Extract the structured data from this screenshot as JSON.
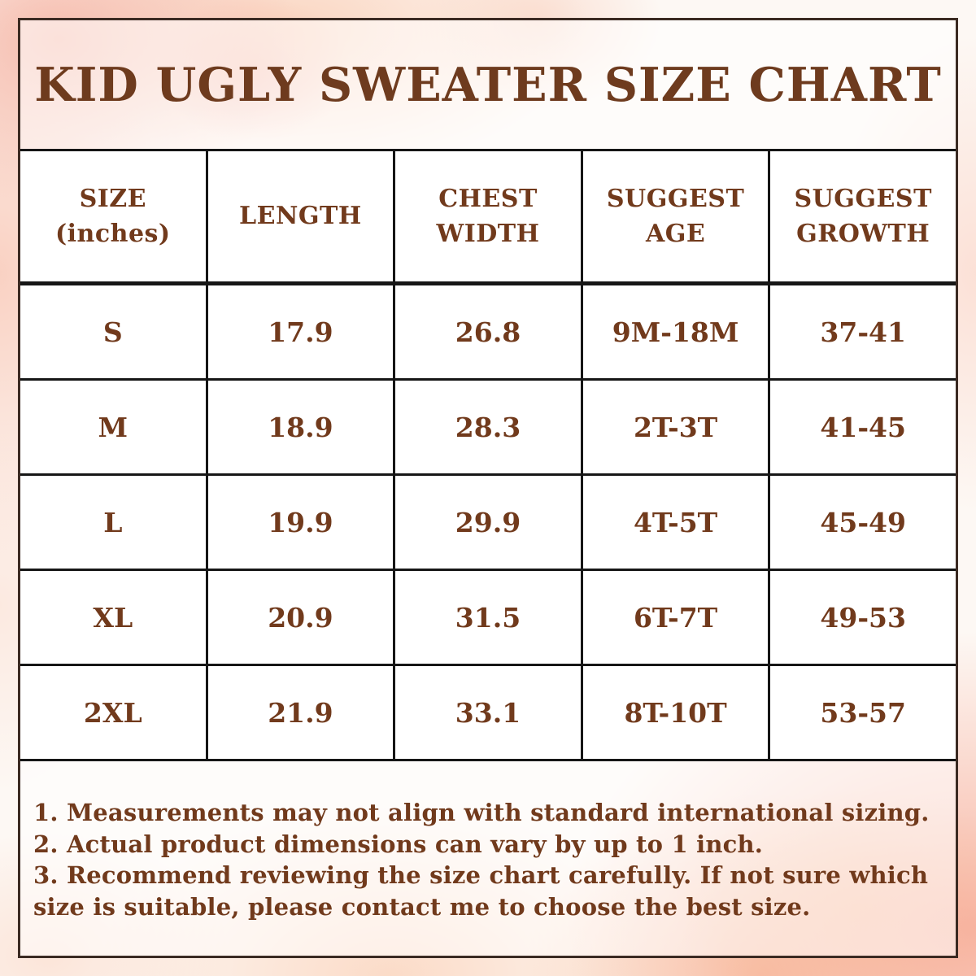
{
  "title": "KID UGLY SWEATER SIZE CHART",
  "colors": {
    "text_brown": "#713a1c",
    "title_brown": "#6e3b1e",
    "grid_line": "#161616",
    "outer_border": "#3b2a22",
    "cell_background": "#ffffff",
    "watercolor_peach": "#f6a894",
    "watercolor_pink": "#f09498",
    "watercolor_cream": "#fce4aa"
  },
  "table": {
    "headers": [
      {
        "line1": "SIZE",
        "line2": "(inches)"
      },
      {
        "line1": "LENGTH",
        "line2": ""
      },
      {
        "line1": "CHEST",
        "line2": "WIDTH"
      },
      {
        "line1": "SUGGEST",
        "line2": "AGE"
      },
      {
        "line1": "SUGGEST",
        "line2": "GROWTH"
      }
    ],
    "rows": [
      {
        "size": "S",
        "length": "17.9",
        "chest": "26.8",
        "age": "9M-18M",
        "growth": "37-41"
      },
      {
        "size": "M",
        "length": "18.9",
        "chest": "28.3",
        "age": "2T-3T",
        "growth": "41-45"
      },
      {
        "size": "L",
        "length": "19.9",
        "chest": "29.9",
        "age": "4T-5T",
        "growth": "45-49"
      },
      {
        "size": "XL",
        "length": "20.9",
        "chest": "31.5",
        "age": "6T-7T",
        "growth": "49-53"
      },
      {
        "size": "2XL",
        "length": "21.9",
        "chest": "33.1",
        "age": "8T-10T",
        "growth": "53-57"
      }
    ]
  },
  "notes": {
    "items": [
      "1. Measurements may not align with standard international sizing.",
      "2. Actual product dimensions can vary by up to 1 inch.",
      "3. Recommend reviewing the size chart carefully. If not sure which size is suitable, please contact me to choose the best size."
    ]
  },
  "chart_data": {
    "type": "table",
    "title": "KID UGLY SWEATER SIZE CHART",
    "columns": [
      "SIZE (inches)",
      "LENGTH",
      "CHEST WIDTH",
      "SUGGEST AGE",
      "SUGGEST GROWTH"
    ],
    "rows": [
      [
        "S",
        17.9,
        26.8,
        "9M-18M",
        "37-41"
      ],
      [
        "M",
        18.9,
        28.3,
        "2T-3T",
        "41-45"
      ],
      [
        "L",
        19.9,
        29.9,
        "4T-5T",
        "45-49"
      ],
      [
        "XL",
        20.9,
        31.5,
        "6T-7T",
        "49-53"
      ],
      [
        "2XL",
        21.9,
        33.1,
        "8T-10T",
        "53-57"
      ]
    ]
  }
}
